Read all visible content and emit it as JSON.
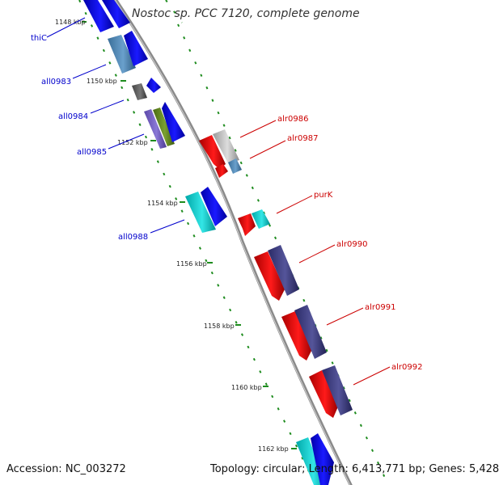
{
  "title": "Nostoc sp. PCC 7120, complete genome",
  "footer": {
    "accession_label": "Accession:",
    "accession": "NC_003272",
    "topology_label": "Topology:",
    "topology": "circular",
    "length_label": "Length:",
    "length": "6,413,771 bp",
    "genes_label": "Genes:",
    "genes": "5,428"
  },
  "colors": {
    "backbone": "#888888",
    "tick_dots": "#1e8c1e",
    "minus_label": "#0000cc",
    "plus_label": "#cc0000"
  },
  "ticks": [
    "1148 kbp",
    "1150 kbp",
    "1152 kbp",
    "1154 kbp",
    "1156 kbp",
    "1158 kbp",
    "1160 kbp",
    "1162 kbp"
  ],
  "minus_labels": [
    "thiC",
    "all0983",
    "all0984",
    "all0985",
    "all0988"
  ],
  "plus_labels": [
    "alr0986",
    "alr0987",
    "purK",
    "alr0990",
    "alr0991",
    "alr0992"
  ]
}
